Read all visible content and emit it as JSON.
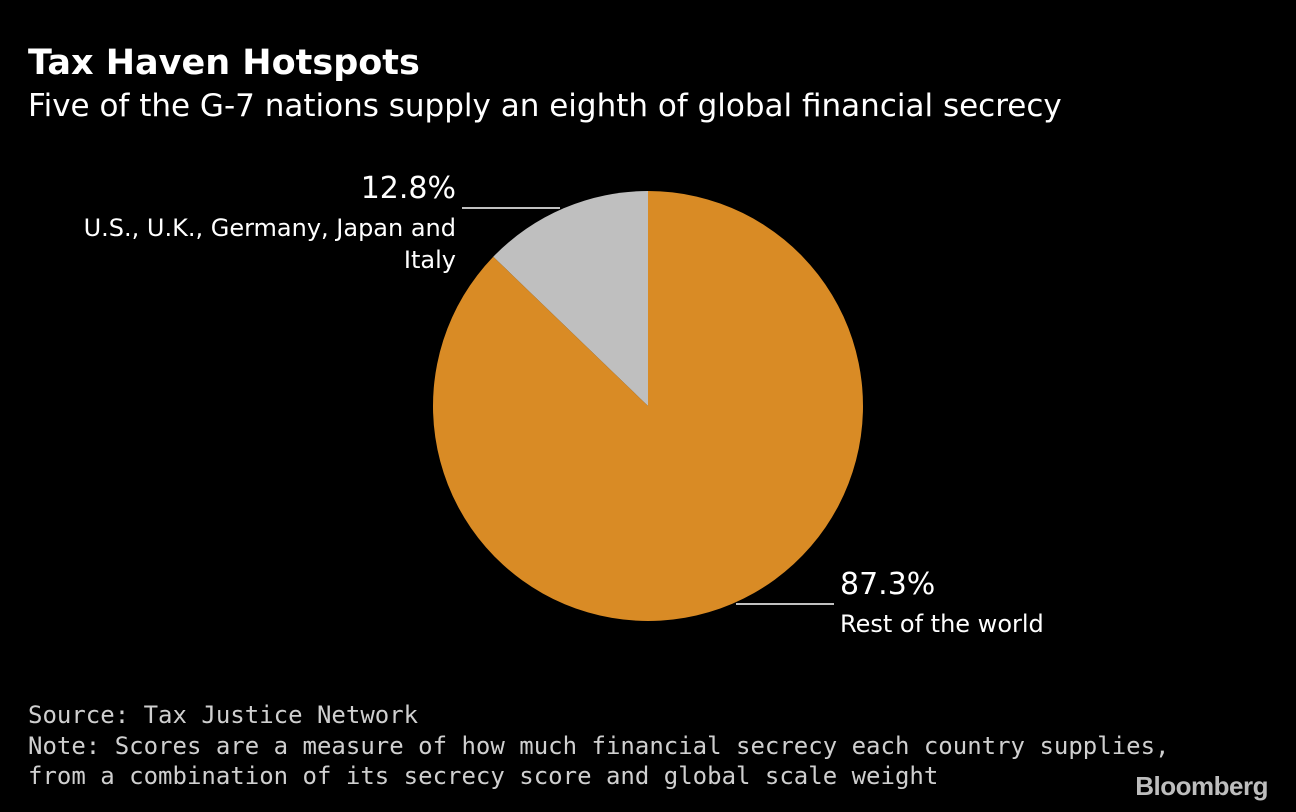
{
  "header": {
    "title": "Tax Haven Hotspots",
    "subtitle": "Five of the G-7 nations supply an eighth of global financial secrecy"
  },
  "chart_data": {
    "type": "pie",
    "title": "Tax Haven Hotspots",
    "subtitle": "Five of the G-7 nations supply an eighth of global financial secrecy",
    "slices": [
      {
        "label": "U.S., U.K., Germany, Japan and Italy",
        "label_lines": [
          "U.S., U.K., Germany, Japan and",
          "Italy"
        ],
        "value": 12.8,
        "value_label": "12.8%",
        "color": "#bfbfbf"
      },
      {
        "label": "Rest of the world",
        "label_lines": [
          "Rest of the world"
        ],
        "value": 87.3,
        "value_label": "87.3%",
        "color": "#d98b25"
      }
    ],
    "legend": "none"
  },
  "footer": {
    "source": "Source: Tax Justice Network",
    "note_line1": "Note: Scores are a measure of how much financial secrecy each country supplies,",
    "note_line2": "from a combination of its secrecy score and global scale weight"
  },
  "brand": {
    "name": "Bloomberg"
  },
  "colors": {
    "background": "#000000",
    "text": "#ffffff",
    "footer_text": "#cfcfcf"
  }
}
